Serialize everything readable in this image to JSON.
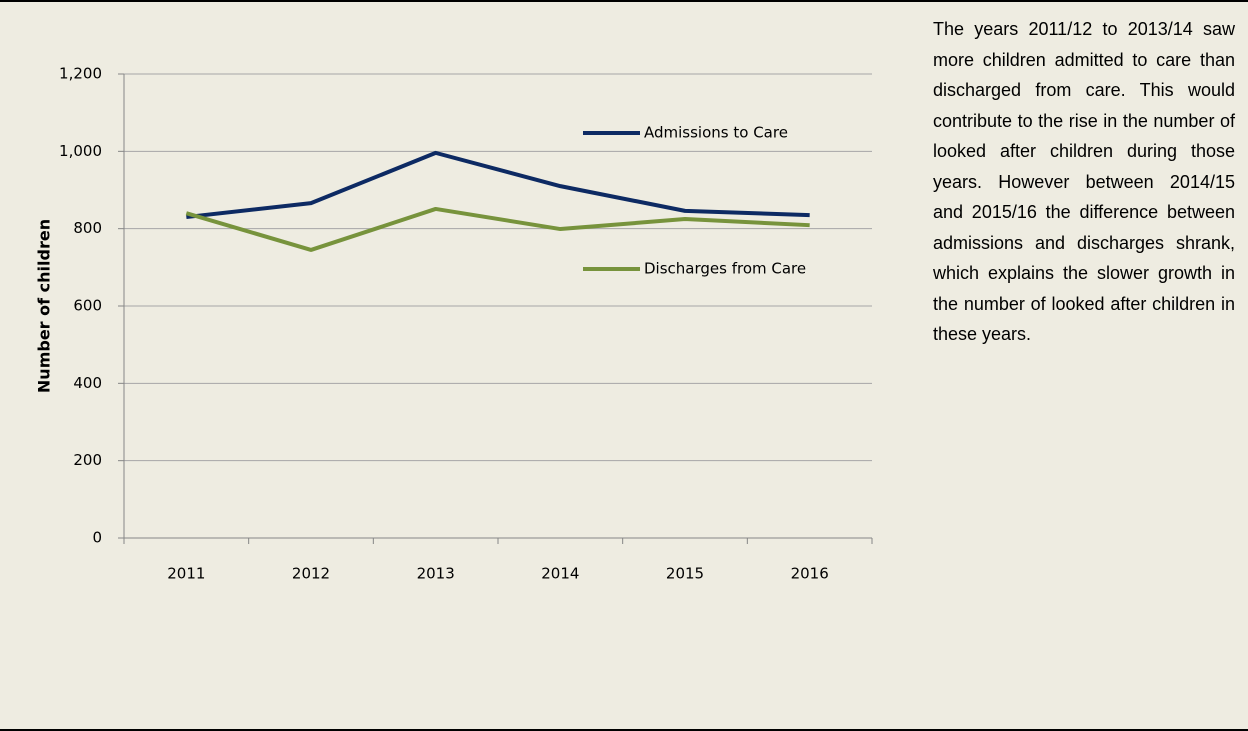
{
  "chart_data": {
    "type": "line",
    "y_label": "Number of children",
    "categories": [
      "2011",
      "2012",
      "2013",
      "2014",
      "2015",
      "2016"
    ],
    "series": [
      {
        "name": "Admissions to Care",
        "color": "#0d2a63",
        "values": [
          830,
          866,
          996,
          910,
          846,
          835
        ]
      },
      {
        "name": "Discharges from Care",
        "color": "#77933c",
        "values": [
          840,
          745,
          851,
          799,
          825,
          809
        ]
      }
    ],
    "ylim": [
      0,
      1200
    ],
    "yticks": [
      0,
      200,
      400,
      600,
      800,
      {
        "value": 1000,
        "label": "1,000"
      },
      {
        "value": 1200,
        "label": "1,200"
      }
    ],
    "grid": true
  },
  "side_text": {
    "paragraph": "The years 2011/12 to 2013/14 saw more children admitted to care than discharged from care. This would contribute to the rise in the number of looked after children during those years. However between 2014/15 and 2015/16 the difference between admissions and discharges shrank, which explains the slower growth in the number of looked after children in these years."
  }
}
